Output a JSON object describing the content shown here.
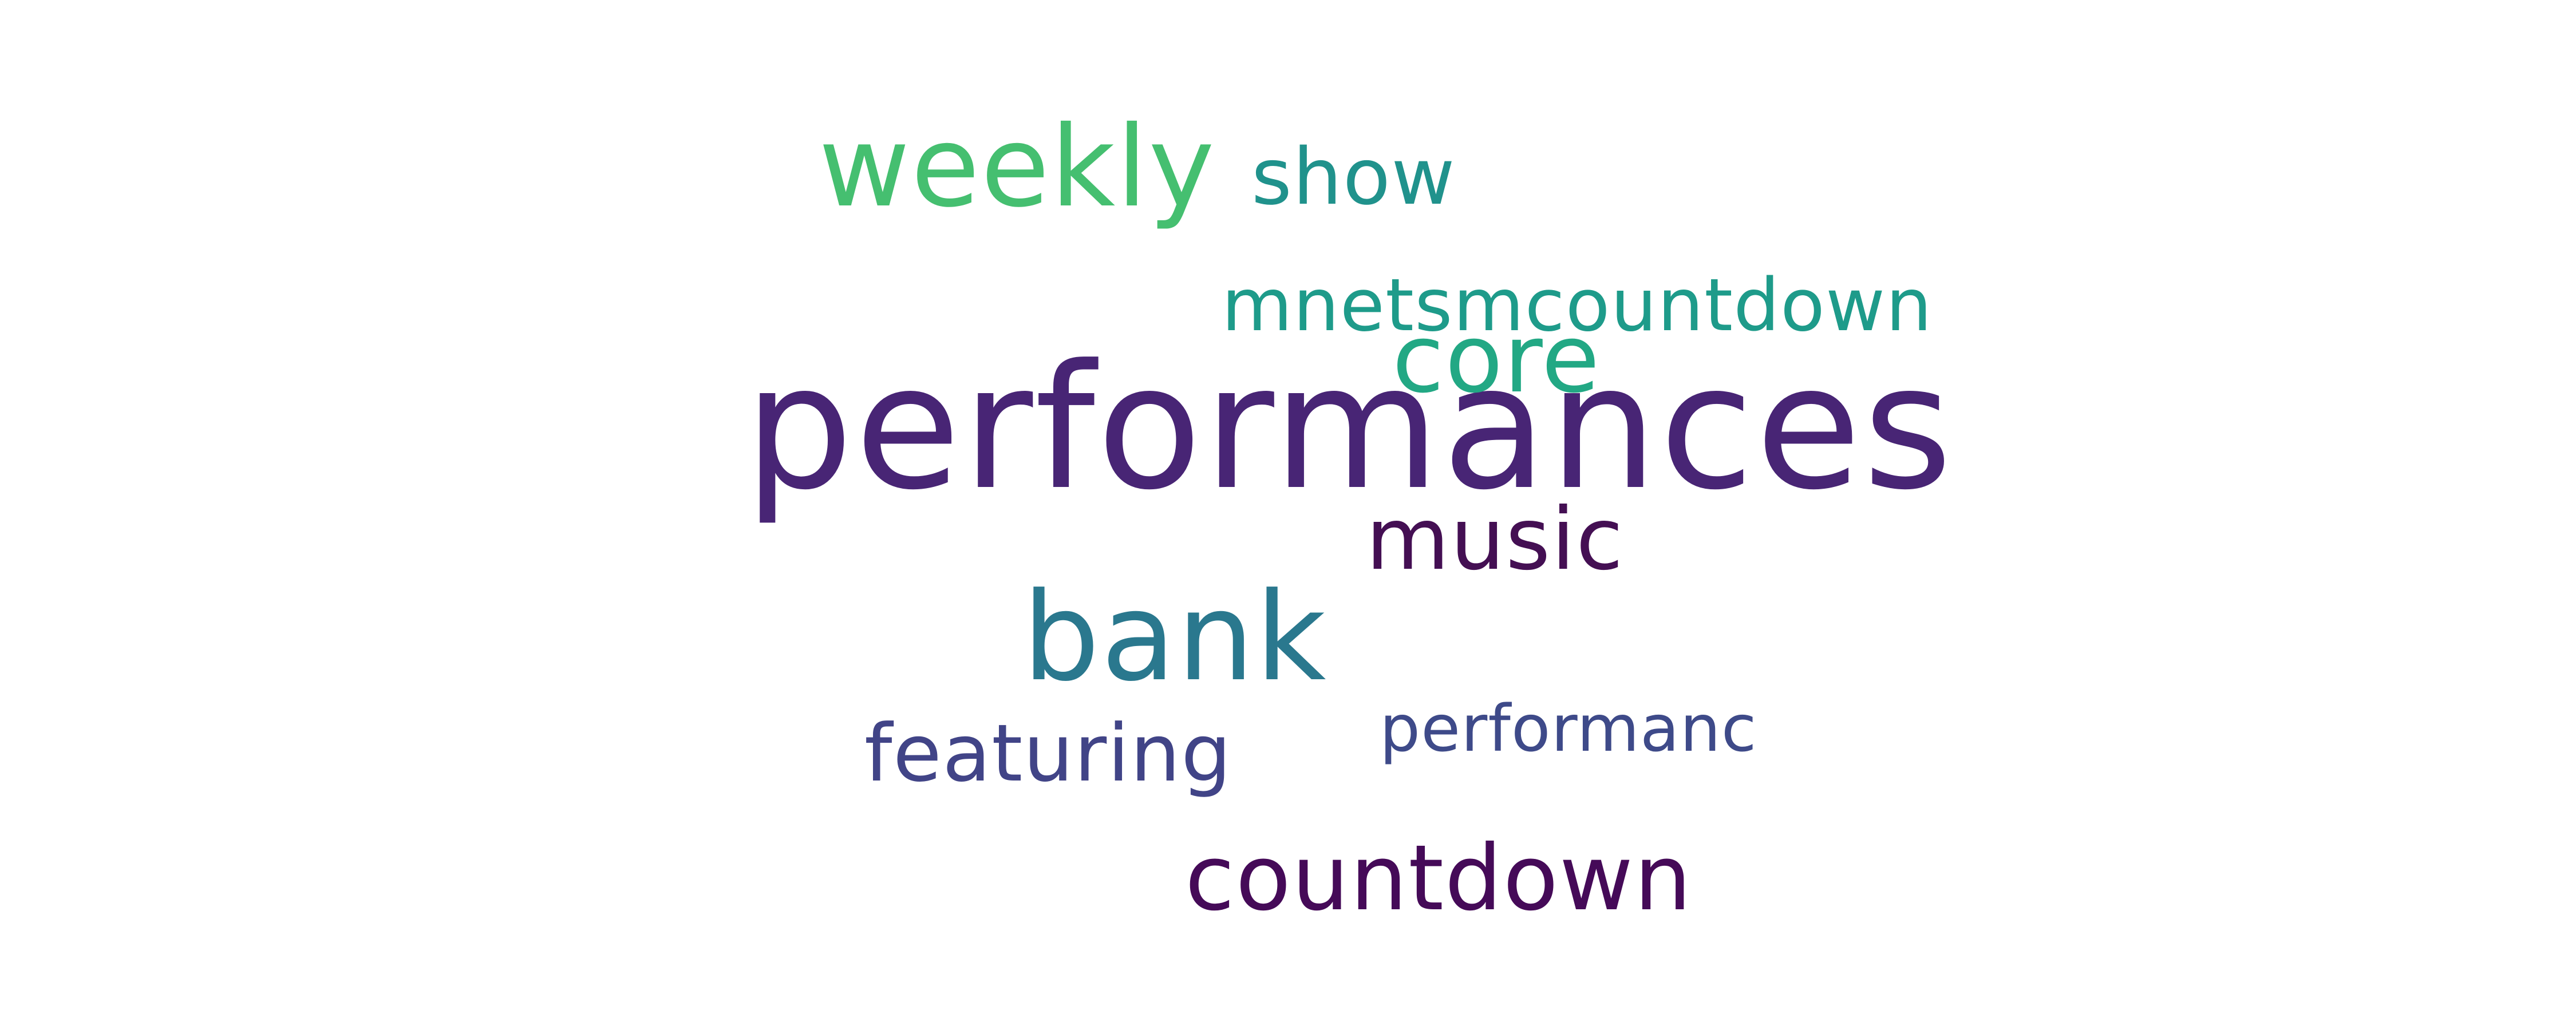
{
  "words": [
    {
      "text": "performances",
      "color": "#482575"
    },
    {
      "text": "weekly",
      "color": "#45bf70"
    },
    {
      "text": "show",
      "color": "#20928c"
    },
    {
      "text": "mnetsmcountdown",
      "color": "#1e9b8a"
    },
    {
      "text": "core",
      "color": "#22a884"
    },
    {
      "text": "music",
      "color": "#440f53"
    },
    {
      "text": "bank",
      "color": "#2a788e"
    },
    {
      "text": "performanc",
      "color": "#3e4a89"
    },
    {
      "text": "featuring",
      "color": "#414487"
    },
    {
      "text": "countdown",
      "color": "#450a58"
    }
  ]
}
